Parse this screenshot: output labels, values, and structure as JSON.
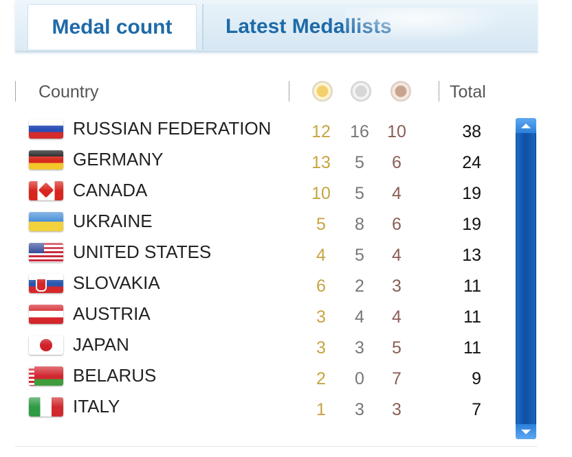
{
  "tabs": [
    {
      "label": "Medal count",
      "active": true
    },
    {
      "label": "Latest Medallists",
      "active": false
    }
  ],
  "header": {
    "country_label": "Country",
    "total_label": "Total",
    "medal_icons": [
      "gold-medal-icon",
      "silver-medal-icon",
      "bronze-medal-icon"
    ]
  },
  "colors": {
    "tab_text": "#1e6aa8",
    "gold": "#c7a441",
    "silver": "#777777",
    "bronze": "#8a5e55",
    "scrollbar": "#0f4fa3"
  },
  "rows": [
    {
      "country": "RUSSIAN FEDERATION",
      "flag": "russia-flag-icon",
      "gold": "12",
      "silver": "16",
      "bronze": "10",
      "total": "38"
    },
    {
      "country": "GERMANY",
      "flag": "germany-flag-icon",
      "gold": "13",
      "silver": "5",
      "bronze": "6",
      "total": "24"
    },
    {
      "country": "CANADA",
      "flag": "canada-flag-icon",
      "gold": "10",
      "silver": "5",
      "bronze": "4",
      "total": "19"
    },
    {
      "country": "UKRAINE",
      "flag": "ukraine-flag-icon",
      "gold": "5",
      "silver": "8",
      "bronze": "6",
      "total": "19"
    },
    {
      "country": "UNITED STATES",
      "flag": "usa-flag-icon",
      "gold": "4",
      "silver": "5",
      "bronze": "4",
      "total": "13"
    },
    {
      "country": "SLOVAKIA",
      "flag": "slovakia-flag-icon",
      "gold": "6",
      "silver": "2",
      "bronze": "3",
      "total": "11"
    },
    {
      "country": "AUSTRIA",
      "flag": "austria-flag-icon",
      "gold": "3",
      "silver": "4",
      "bronze": "4",
      "total": "11"
    },
    {
      "country": "JAPAN",
      "flag": "japan-flag-icon",
      "gold": "3",
      "silver": "3",
      "bronze": "5",
      "total": "11"
    },
    {
      "country": "BELARUS",
      "flag": "belarus-flag-icon",
      "gold": "2",
      "silver": "0",
      "bronze": "7",
      "total": "9"
    },
    {
      "country": "ITALY",
      "flag": "italy-flag-icon",
      "gold": "1",
      "silver": "3",
      "bronze": "3",
      "total": "7"
    }
  ]
}
